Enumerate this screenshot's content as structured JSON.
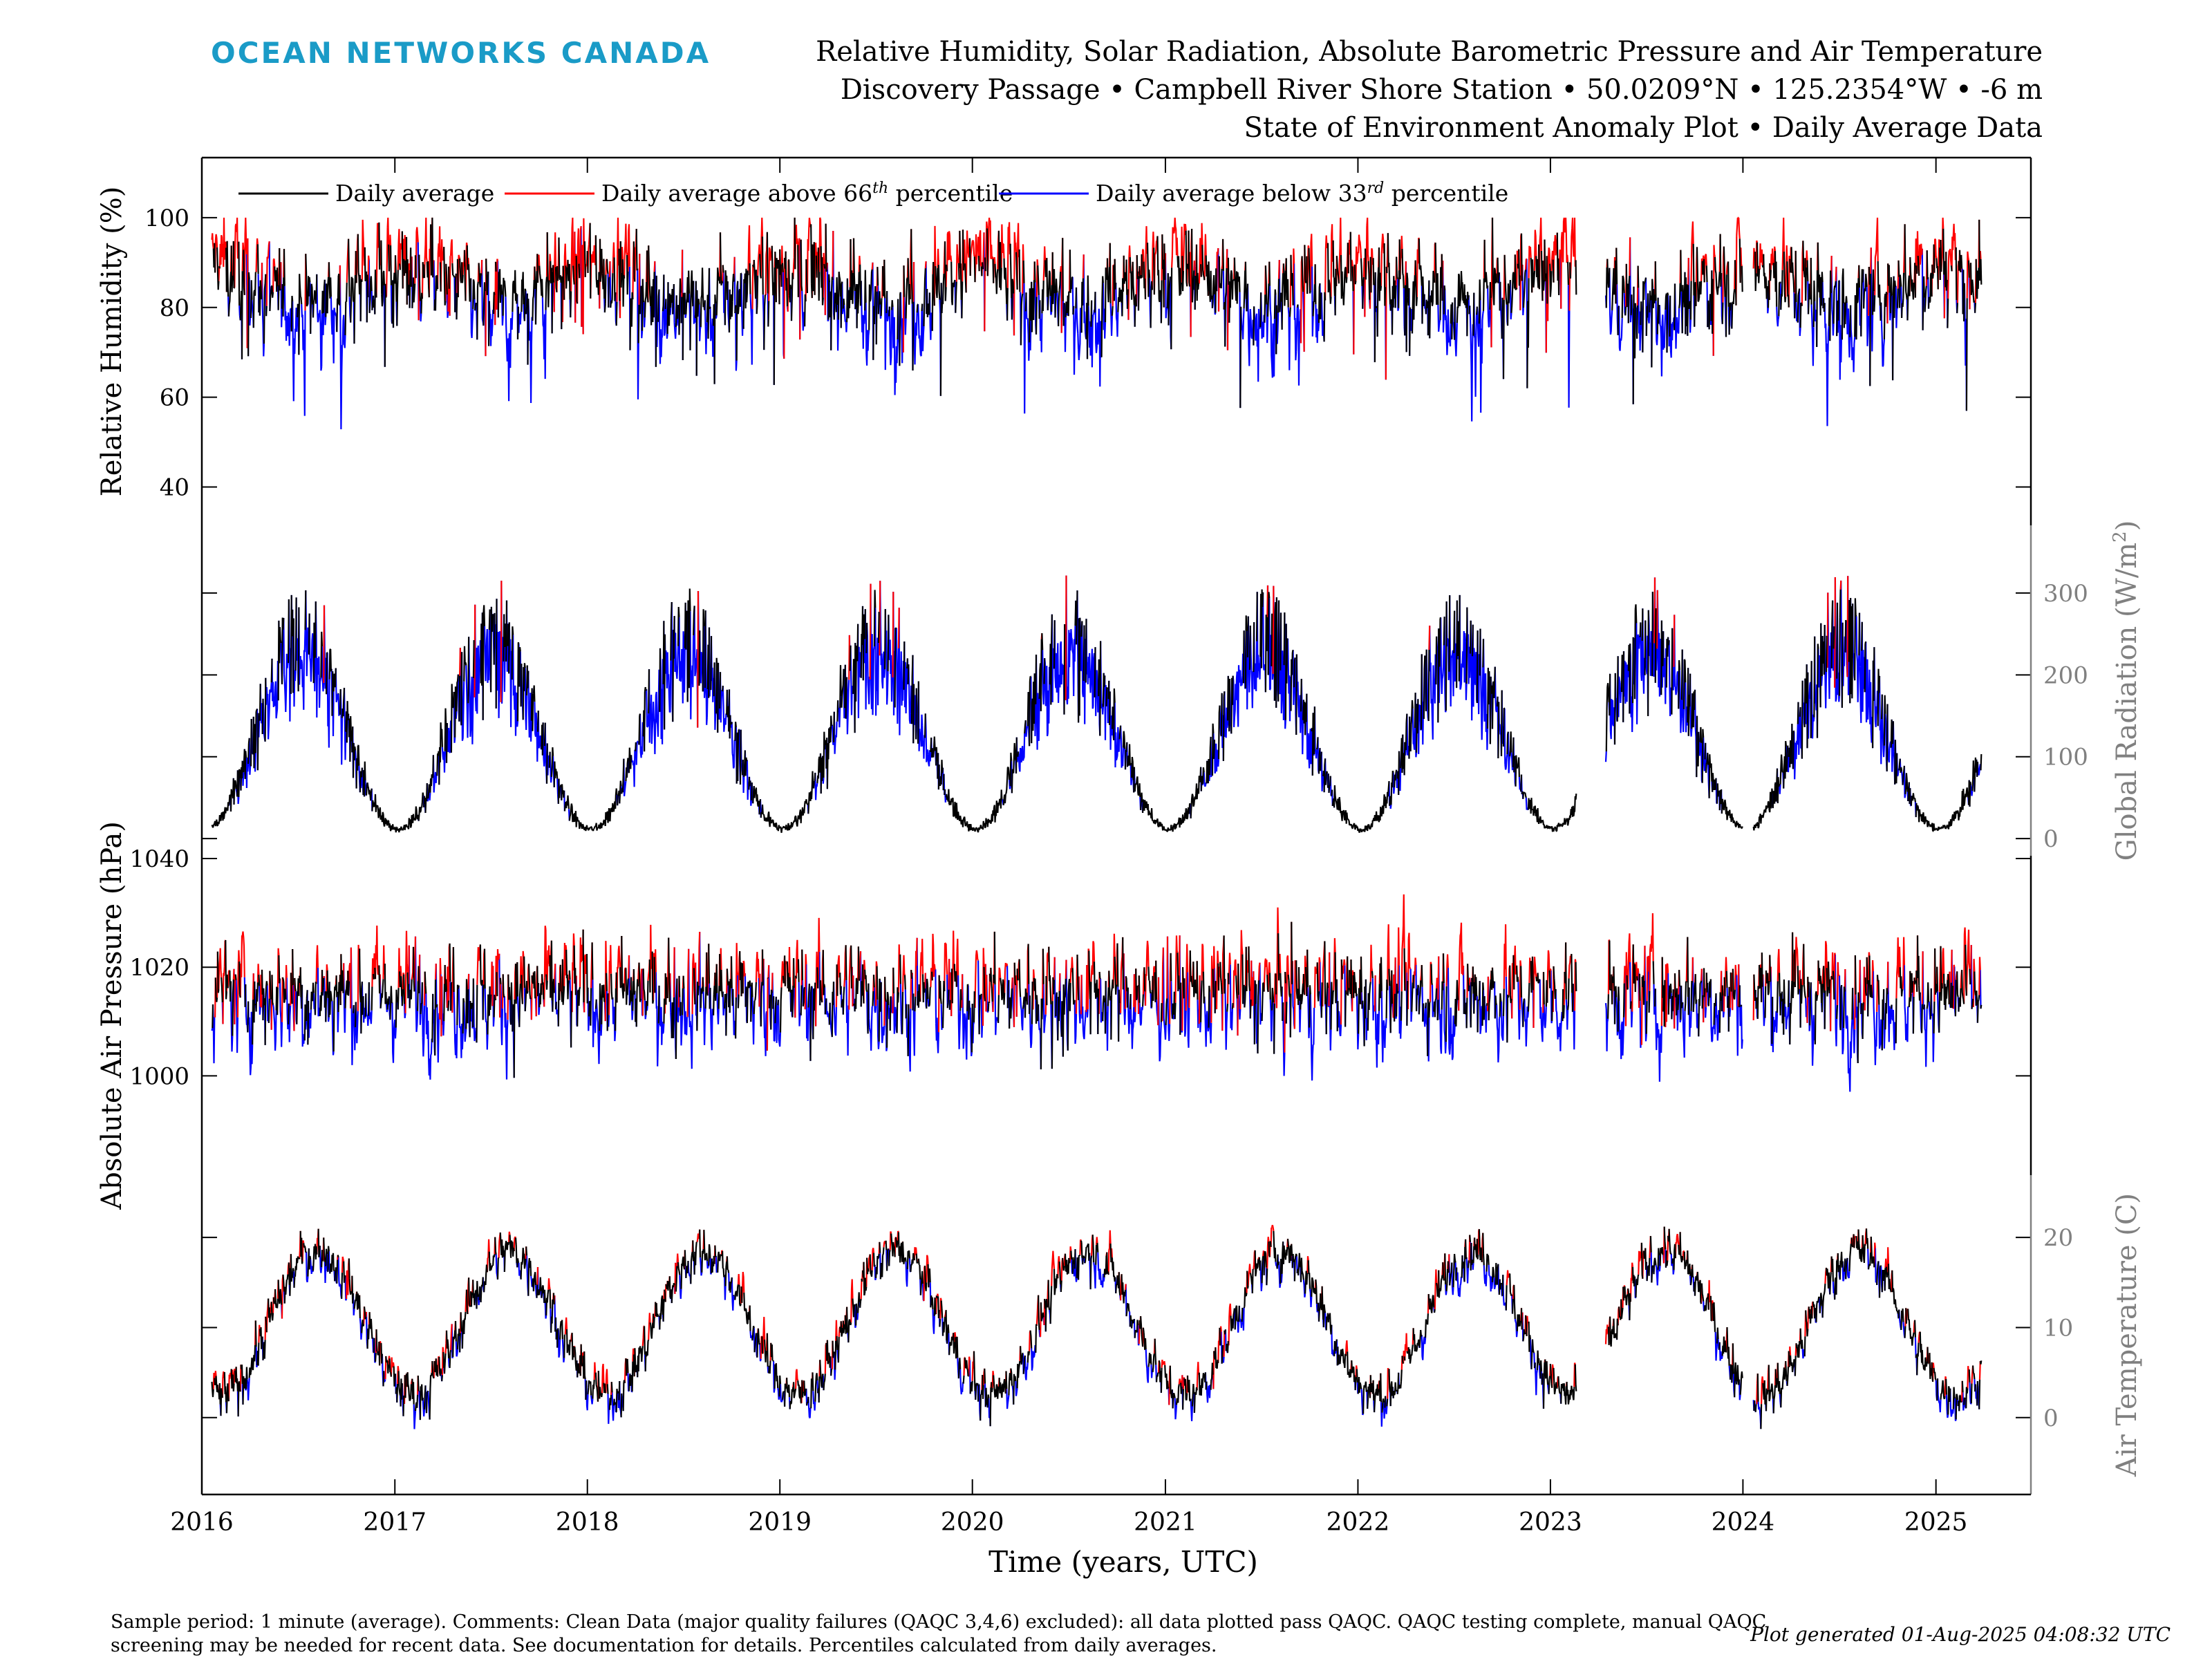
{
  "header": {
    "logo_text": "OCEAN NETWORKS CANADA",
    "title_line1": "Relative Humidity, Solar Radiation, Absolute Barometric Pressure and Air Temperature",
    "title_line2": "Discovery Passage • Campbell River Shore Station • 50.0209°N • 125.2354°W • -6 m",
    "title_line3": "State of Environment Anomaly Plot • Daily Average Data"
  },
  "footer": {
    "comments": "Sample period: 1 minute (average). Comments: Clean Data (major quality failures (QAQC 3,4,6) excluded): all data plotted pass QAQC. QAQC testing complete, manual QAQC screening may be needed for recent data. See documentation for details. Percentiles calculated from daily averages.",
    "plot_generated": "Plot generated 01-Aug-2025 04:08:32 UTC"
  },
  "colors": {
    "average": "#000000",
    "above": "#ff0000",
    "below": "#0000ff",
    "logo": "#1a9bc7",
    "right_axis": "#808080"
  },
  "chart_data": {
    "type": "line",
    "x_axis": {
      "label": "Time (years, UTC)",
      "range": [
        "2016-01-01",
        "2025-06-30"
      ],
      "ticks": [
        "2016",
        "2017",
        "2018",
        "2019",
        "2020",
        "2021",
        "2022",
        "2023",
        "2024",
        "2025"
      ]
    },
    "legend": {
      "placement": "top-left",
      "entries": [
        {
          "key": "average",
          "label": "Daily average"
        },
        {
          "key": "above",
          "label": "Daily average above 66",
          "sup": "th",
          "suffix": " percentile"
        },
        {
          "key": "below",
          "label": "Daily average below 33",
          "sup": "rd",
          "suffix": " percentile"
        }
      ]
    },
    "gaps": [
      [
        "2023-02-20",
        "2023-04-15"
      ],
      [
        "2024-01-01",
        "2024-01-20"
      ]
    ],
    "panels": [
      {
        "key": "rh",
        "ylabel": "Relative Humidity (%)",
        "axis_side": "left",
        "ylim": [
          33,
          110
        ],
        "ticks": [
          40,
          60,
          80,
          100
        ],
        "seasonal": {
          "mean": 85,
          "amplitude": 5,
          "phase_month": 0.5,
          "noise": 9,
          "pmin": 35,
          "pmax": 100
        },
        "thresholds": {
          "p33": 80,
          "p66": 89
        }
      },
      {
        "key": "rad",
        "ylabel": "Global Radiation (W/m",
        "ylabel_sup": "2",
        "ylabel_end": ")",
        "axis_side": "right",
        "ylim": [
          -10,
          370
        ],
        "ticks": [
          0,
          100,
          200,
          300
        ],
        "seasonal": {
          "mean": 150,
          "amplitude": 135,
          "phase_month": 6.2,
          "noise": 45,
          "pmin": 0,
          "pmax": 350
        },
        "thresholds": {
          "seasonal": true,
          "below": -22,
          "above": 22
        }
      },
      {
        "key": "pres",
        "ylabel": "Absolute Air Pressure (hPa)",
        "axis_side": "left",
        "ylim": [
          983,
          1040
        ],
        "ticks": [
          1000,
          1020,
          1040
        ],
        "seasonal": {
          "mean": 1015,
          "amplitude": 0,
          "phase_month": 0,
          "noise": 8,
          "pmin": 985,
          "pmax": 1039
        },
        "thresholds": {
          "p33": 1013,
          "p66": 1018
        }
      },
      {
        "key": "temp",
        "ylabel": "Air Temperature (C)",
        "axis_side": "right",
        "ylim": [
          -8,
          26
        ],
        "ticks": [
          0,
          10,
          20
        ],
        "seasonal": {
          "mean": 10.5,
          "amplitude": 8,
          "phase_month": 7.2,
          "noise": 2.2,
          "pmin": -8,
          "pmax": 25
        },
        "thresholds": {
          "seasonal": true,
          "below": -1.2,
          "above": 1.2
        }
      }
    ]
  }
}
